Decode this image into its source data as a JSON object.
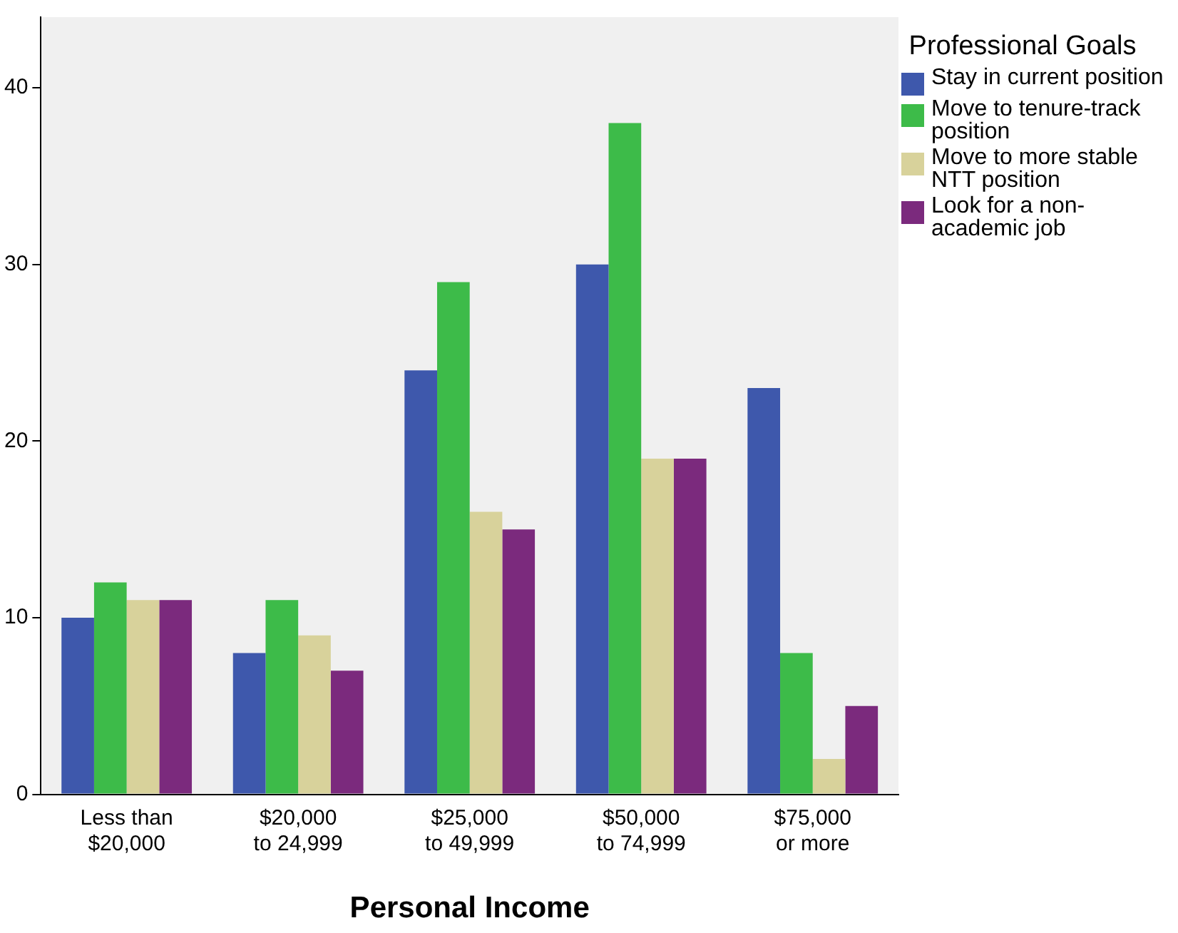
{
  "chart_data": {
    "type": "bar",
    "xlabel": "Personal Income",
    "legend_title": "Professional Goals",
    "categories": [
      "Less than $20,000",
      "$20,000 to 24,999",
      "$25,000 to 49,999",
      "$50,000 to 74,999",
      "$75,000 or more"
    ],
    "series": [
      {
        "name": "Stay in current position",
        "color": "#3e58ac",
        "values": [
          10,
          8,
          24,
          30,
          23
        ]
      },
      {
        "name": "Move to tenure-track position",
        "color": "#3dbb49",
        "values": [
          12,
          11,
          29,
          38,
          8
        ]
      },
      {
        "name": "Move to more stable NTT position",
        "color": "#d8d29b",
        "values": [
          11,
          9,
          16,
          19,
          2
        ]
      },
      {
        "name": "Look for a non-academic job",
        "color": "#7b2a7d",
        "values": [
          11,
          7,
          15,
          19,
          5
        ]
      }
    ],
    "ylim": [
      0,
      44
    ],
    "yticks": [
      0,
      10,
      20,
      30,
      40
    ],
    "grid": false,
    "legend": "right"
  }
}
